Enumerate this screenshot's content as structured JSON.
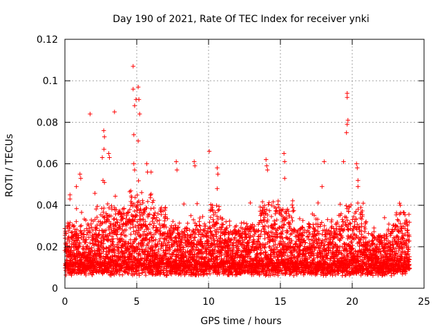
{
  "chart_data": {
    "type": "scatter",
    "title": "Day 190 of 2021, Rate Of TEC Index for receiver ynki",
    "xlabel": "GPS time / hours",
    "ylabel": "ROTI / TECUs",
    "xlim": [
      0,
      25
    ],
    "ylim": [
      0,
      0.12
    ],
    "xticks": [
      0,
      5,
      10,
      15,
      20,
      25
    ],
    "xtick_labels": [
      "0",
      "5",
      "10",
      "15",
      "20",
      "25"
    ],
    "yticks": [
      0,
      0.02,
      0.04,
      0.06,
      0.08,
      0.1,
      0.12
    ],
    "ytick_labels": [
      "0",
      "0.02",
      "0.04",
      "0.06",
      "0.08",
      "0.1",
      "0.12"
    ],
    "grid": true,
    "marker": "plus",
    "color": "#ff0000",
    "data_x_range": [
      0,
      24
    ],
    "outliers": [
      {
        "x": 1.75,
        "y": 0.084
      },
      {
        "x": 3.45,
        "y": 0.085
      },
      {
        "x": 2.7,
        "y": 0.076
      },
      {
        "x": 2.75,
        "y": 0.073
      },
      {
        "x": 2.72,
        "y": 0.067
      },
      {
        "x": 2.6,
        "y": 0.063
      },
      {
        "x": 3.05,
        "y": 0.065
      },
      {
        "x": 3.1,
        "y": 0.063
      },
      {
        "x": 2.65,
        "y": 0.052
      },
      {
        "x": 2.75,
        "y": 0.051
      },
      {
        "x": 1.05,
        "y": 0.055
      },
      {
        "x": 1.1,
        "y": 0.053
      },
      {
        "x": 0.35,
        "y": 0.045
      },
      {
        "x": 0.35,
        "y": 0.043
      },
      {
        "x": 0.8,
        "y": 0.049
      },
      {
        "x": 4.75,
        "y": 0.107
      },
      {
        "x": 4.75,
        "y": 0.096
      },
      {
        "x": 5.1,
        "y": 0.097
      },
      {
        "x": 4.95,
        "y": 0.091
      },
      {
        "x": 5.15,
        "y": 0.091
      },
      {
        "x": 4.85,
        "y": 0.088
      },
      {
        "x": 5.2,
        "y": 0.084
      },
      {
        "x": 4.8,
        "y": 0.074
      },
      {
        "x": 5.1,
        "y": 0.071
      },
      {
        "x": 4.8,
        "y": 0.06
      },
      {
        "x": 4.85,
        "y": 0.057
      },
      {
        "x": 5.7,
        "y": 0.06
      },
      {
        "x": 5.75,
        "y": 0.056
      },
      {
        "x": 6.0,
        "y": 0.056
      },
      {
        "x": 7.75,
        "y": 0.061
      },
      {
        "x": 7.8,
        "y": 0.057
      },
      {
        "x": 9.0,
        "y": 0.061
      },
      {
        "x": 9.05,
        "y": 0.059
      },
      {
        "x": 10.05,
        "y": 0.066
      },
      {
        "x": 10.6,
        "y": 0.058
      },
      {
        "x": 10.65,
        "y": 0.055
      },
      {
        "x": 10.6,
        "y": 0.048
      },
      {
        "x": 14.0,
        "y": 0.062
      },
      {
        "x": 14.05,
        "y": 0.059
      },
      {
        "x": 14.1,
        "y": 0.057
      },
      {
        "x": 15.25,
        "y": 0.065
      },
      {
        "x": 15.3,
        "y": 0.061
      },
      {
        "x": 15.3,
        "y": 0.053
      },
      {
        "x": 18.05,
        "y": 0.061
      },
      {
        "x": 17.9,
        "y": 0.049
      },
      {
        "x": 19.4,
        "y": 0.061
      },
      {
        "x": 19.65,
        "y": 0.094
      },
      {
        "x": 19.65,
        "y": 0.092
      },
      {
        "x": 19.7,
        "y": 0.081
      },
      {
        "x": 19.65,
        "y": 0.079
      },
      {
        "x": 19.6,
        "y": 0.075
      },
      {
        "x": 20.3,
        "y": 0.06
      },
      {
        "x": 20.35,
        "y": 0.058
      },
      {
        "x": 20.4,
        "y": 0.052
      },
      {
        "x": 20.4,
        "y": 0.049
      },
      {
        "x": 23.3,
        "y": 0.041
      },
      {
        "x": 23.35,
        "y": 0.04
      },
      {
        "x": 22.25,
        "y": 0.034
      }
    ]
  }
}
